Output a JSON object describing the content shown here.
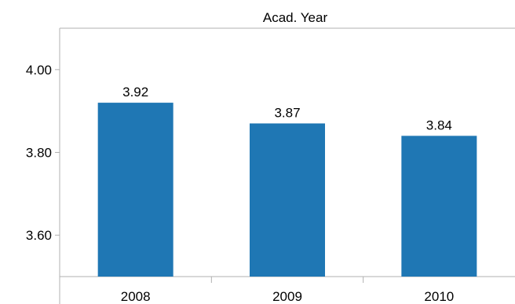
{
  "chart_data": {
    "type": "bar",
    "title": "Acad. Year",
    "xlabel": "",
    "ylabel": "",
    "categories": [
      "2008",
      "2009",
      "2010"
    ],
    "values": [
      3.92,
      3.87,
      3.84
    ],
    "data_labels": [
      "3.92",
      "3.87",
      "3.84"
    ],
    "ylim": [
      3.5,
      4.1
    ],
    "yticks": [
      3.6,
      3.8,
      4.0
    ],
    "ytick_labels": [
      "3.60",
      "3.80",
      "4.00"
    ],
    "grid": false,
    "legend": "none",
    "bar_color": "#1f77b4"
  }
}
